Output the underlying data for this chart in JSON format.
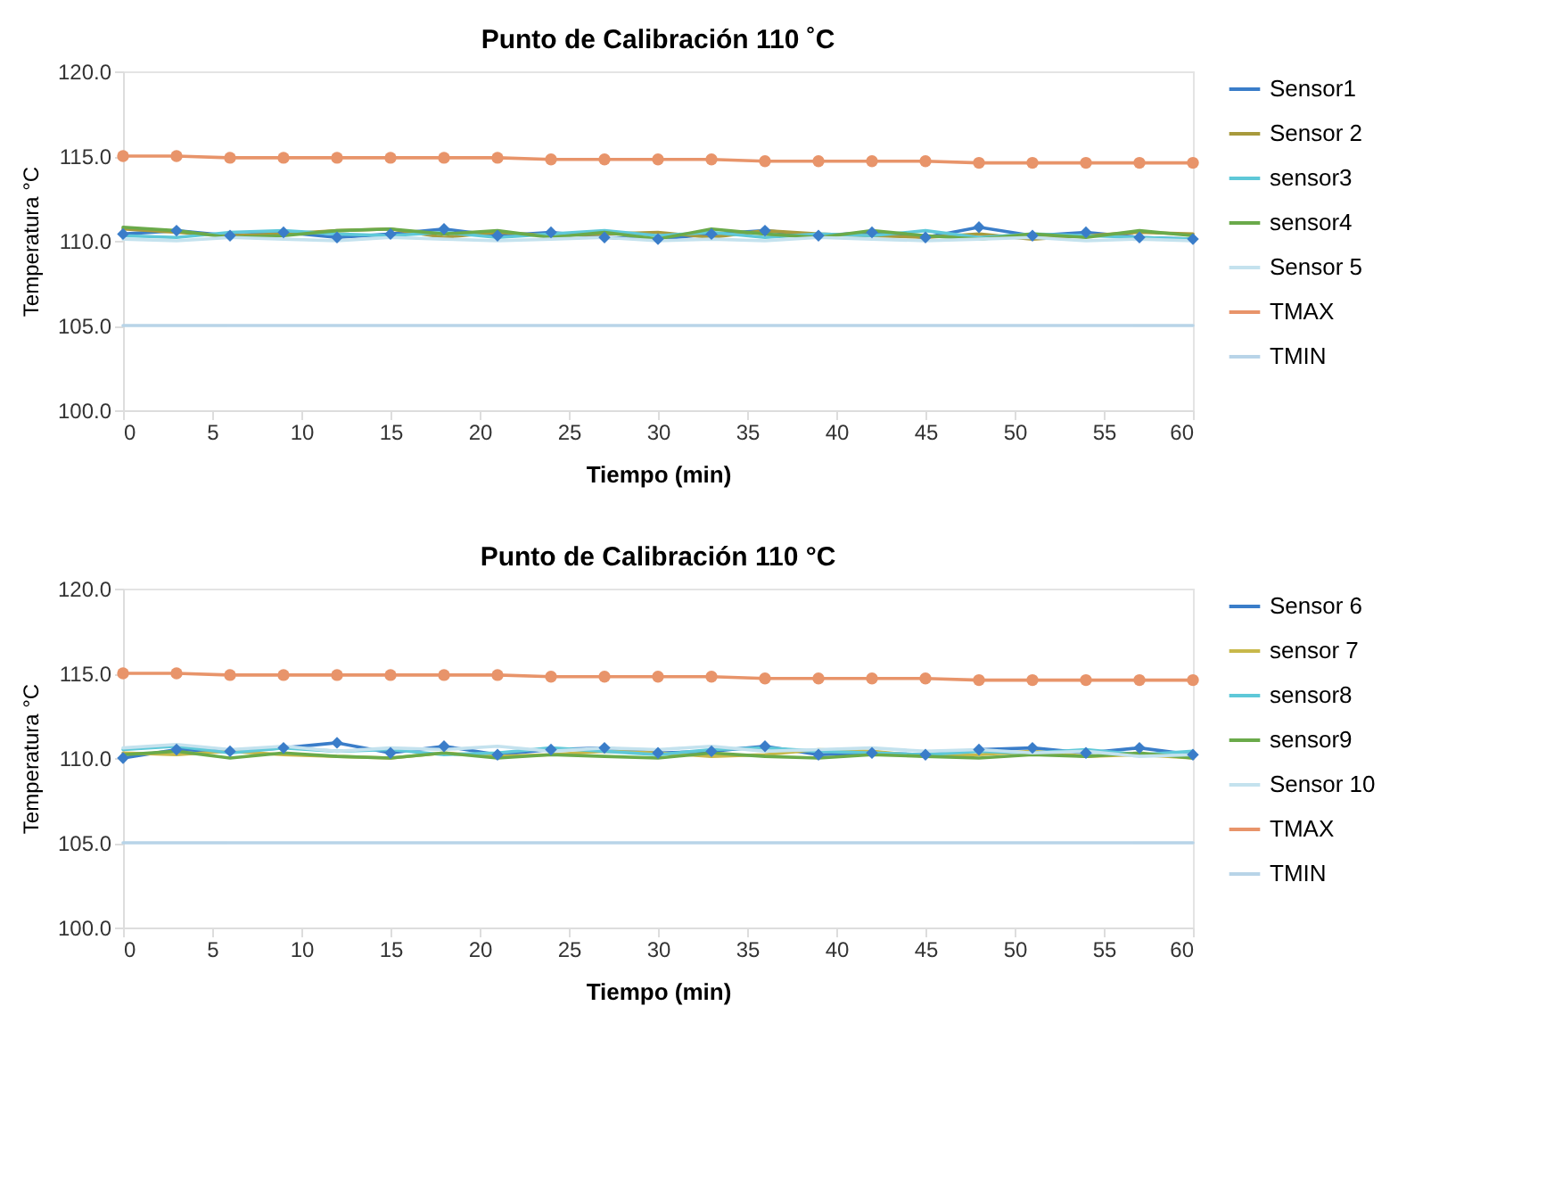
{
  "chart_data": [
    {
      "type": "line",
      "title": "Punto de Calibración 110 ˚C",
      "xlabel": "Tiempo (min)",
      "ylabel": "Temperatura °C",
      "x": [
        0,
        3,
        6,
        9,
        12,
        15,
        18,
        21,
        24,
        27,
        30,
        33,
        36,
        39,
        42,
        45,
        48,
        51,
        54,
        57,
        60
      ],
      "series": [
        {
          "name": "Sensor1",
          "color": "#3a7dc9",
          "marker": "diamond",
          "values": [
            110.4,
            110.6,
            110.3,
            110.5,
            110.2,
            110.4,
            110.7,
            110.3,
            110.5,
            110.2,
            110.1,
            110.4,
            110.6,
            110.3,
            110.5,
            110.2,
            110.8,
            110.3,
            110.5,
            110.2,
            110.1
          ]
        },
        {
          "name": "Sensor 2",
          "color": "#a89a3c",
          "values": [
            110.7,
            110.5,
            110.3,
            110.4,
            110.6,
            110.7,
            110.2,
            110.5,
            110.3,
            110.4,
            110.5,
            110.2,
            110.6,
            110.4,
            110.3,
            110.2,
            110.4,
            110.1,
            110.3,
            110.5,
            110.4
          ]
        },
        {
          "name": "sensor3",
          "color": "#5ec8d8",
          "values": [
            110.3,
            110.2,
            110.5,
            110.6,
            110.4,
            110.3,
            110.5,
            110.2,
            110.4,
            110.6,
            110.3,
            110.5,
            110.2,
            110.4,
            110.3,
            110.6,
            110.2,
            110.4,
            110.3,
            110.2,
            110.1
          ]
        },
        {
          "name": "sensor4",
          "color": "#6aaa4a",
          "values": [
            110.8,
            110.6,
            110.2,
            110.3,
            110.6,
            110.7,
            110.4,
            110.6,
            110.2,
            110.5,
            110.1,
            110.7,
            110.4,
            110.2,
            110.6,
            110.3,
            110.1,
            110.4,
            110.2,
            110.6,
            110.3
          ]
        },
        {
          "name": "Sensor 5",
          "color": "#c4e2ee",
          "values": [
            110.1,
            110.0,
            110.2,
            110.1,
            110.0,
            110.2,
            110.1,
            110.0,
            110.1,
            110.2,
            110.0,
            110.1,
            110.0,
            110.2,
            110.1,
            110.0,
            110.1,
            110.2,
            110.0,
            110.1,
            110.0
          ]
        },
        {
          "name": "TMAX",
          "color": "#e8946a",
          "marker": "circle",
          "values": [
            115.0,
            115.0,
            114.9,
            114.9,
            114.9,
            114.9,
            114.9,
            114.9,
            114.8,
            114.8,
            114.8,
            114.8,
            114.7,
            114.7,
            114.7,
            114.7,
            114.6,
            114.6,
            114.6,
            114.6,
            114.6
          ]
        },
        {
          "name": "TMIN",
          "color": "#b8d4e8",
          "values": [
            105.0,
            105.0,
            105.0,
            105.0,
            105.0,
            105.0,
            105.0,
            105.0,
            105.0,
            105.0,
            105.0,
            105.0,
            105.0,
            105.0,
            105.0,
            105.0,
            105.0,
            105.0,
            105.0,
            105.0,
            105.0
          ]
        }
      ],
      "xlim": [
        0,
        60
      ],
      "xticks": [
        0,
        5,
        10,
        15,
        20,
        25,
        30,
        35,
        40,
        45,
        50,
        55,
        60
      ],
      "ylim": [
        100,
        120
      ],
      "yticks": [
        {
          "value": 100,
          "label": "100.0"
        },
        {
          "value": 105,
          "label": "105.0"
        },
        {
          "value": 110,
          "label": "110.0"
        },
        {
          "value": 115,
          "label": "115.0"
        },
        {
          "value": 120,
          "label": "120.0"
        }
      ],
      "legend": "right"
    },
    {
      "type": "line",
      "title": "Punto de Calibración 110 °C",
      "xlabel": "Tiempo (min)",
      "ylabel": "Temperatura °C",
      "x": [
        0,
        3,
        6,
        9,
        12,
        15,
        18,
        21,
        24,
        27,
        30,
        33,
        36,
        39,
        42,
        45,
        48,
        51,
        54,
        57,
        60
      ],
      "series": [
        {
          "name": "Sensor 6",
          "color": "#3a7dc9",
          "marker": "diamond",
          "values": [
            110.0,
            110.5,
            110.4,
            110.6,
            110.9,
            110.3,
            110.7,
            110.2,
            110.5,
            110.6,
            110.3,
            110.4,
            110.7,
            110.2,
            110.3,
            110.2,
            110.5,
            110.6,
            110.3,
            110.6,
            110.2
          ]
        },
        {
          "name": "sensor 7",
          "color": "#c8b84a",
          "values": [
            110.3,
            110.2,
            110.4,
            110.2,
            110.1,
            110.0,
            110.3,
            110.1,
            110.2,
            110.4,
            110.3,
            110.1,
            110.2,
            110.5,
            110.4,
            110.1,
            110.2,
            110.4,
            110.1,
            110.2,
            110.0
          ]
        },
        {
          "name": "sensor8",
          "color": "#5ec8d8",
          "values": [
            110.5,
            110.7,
            110.3,
            110.6,
            110.4,
            110.5,
            110.2,
            110.3,
            110.6,
            110.4,
            110.2,
            110.5,
            110.6,
            110.4,
            110.3,
            110.2,
            110.4,
            110.3,
            110.5,
            110.2,
            110.4
          ]
        },
        {
          "name": "sensor9",
          "color": "#6aaa4a",
          "values": [
            110.2,
            110.4,
            110.0,
            110.3,
            110.1,
            110.0,
            110.3,
            110.0,
            110.2,
            110.1,
            110.0,
            110.3,
            110.1,
            110.0,
            110.2,
            110.1,
            110.0,
            110.2,
            110.1,
            110.3,
            110.0
          ]
        },
        {
          "name": "Sensor 10",
          "color": "#c4e2ee",
          "values": [
            110.6,
            110.8,
            110.5,
            110.7,
            110.4,
            110.6,
            110.5,
            110.7,
            110.4,
            110.6,
            110.5,
            110.7,
            110.4,
            110.5,
            110.6,
            110.4,
            110.5,
            110.3,
            110.4,
            110.1,
            110.2
          ]
        },
        {
          "name": "TMAX",
          "color": "#e8946a",
          "marker": "circle",
          "values": [
            115.0,
            115.0,
            114.9,
            114.9,
            114.9,
            114.9,
            114.9,
            114.9,
            114.8,
            114.8,
            114.8,
            114.8,
            114.7,
            114.7,
            114.7,
            114.7,
            114.6,
            114.6,
            114.6,
            114.6,
            114.6
          ]
        },
        {
          "name": "TMIN",
          "color": "#b8d4e8",
          "values": [
            105.0,
            105.0,
            105.0,
            105.0,
            105.0,
            105.0,
            105.0,
            105.0,
            105.0,
            105.0,
            105.0,
            105.0,
            105.0,
            105.0,
            105.0,
            105.0,
            105.0,
            105.0,
            105.0,
            105.0,
            105.0
          ]
        }
      ],
      "xlim": [
        0,
        60
      ],
      "xticks": [
        0,
        5,
        10,
        15,
        20,
        25,
        30,
        35,
        40,
        45,
        50,
        55,
        60
      ],
      "ylim": [
        100,
        120
      ],
      "yticks": [
        {
          "value": 100,
          "label": "100.0"
        },
        {
          "value": 105,
          "label": "105.0"
        },
        {
          "value": 110,
          "label": "110.0"
        },
        {
          "value": 115,
          "label": "115.0"
        },
        {
          "value": 120,
          "label": "120.0"
        }
      ],
      "legend": "right"
    }
  ]
}
